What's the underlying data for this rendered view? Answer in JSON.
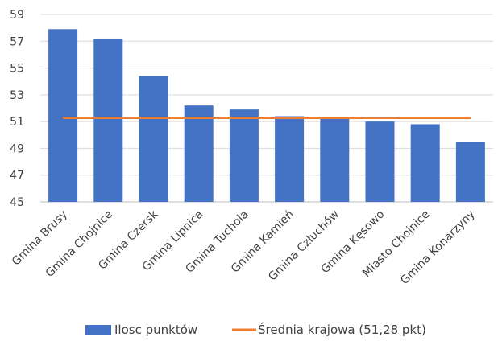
{
  "chart_data": {
    "type": "bar",
    "title": "",
    "xlabel": "",
    "ylabel": "",
    "ylim": [
      45,
      59
    ],
    "yticks": [
      45,
      47,
      49,
      51,
      53,
      55,
      57,
      59
    ],
    "grid": true,
    "legend_position": "bottom",
    "categories": [
      "Gmina Brusy",
      "Gmina Chojnice",
      "Gmina Czersk",
      "Gmina Lipnica",
      "Gmina Tuchola",
      "Gmina Kamień",
      "Gmina Człuchów",
      "Gmina Kęsowo",
      "Miasto Chojnice",
      "Gmina Konarzyny"
    ],
    "series": [
      {
        "name": "Ilosc punktów",
        "type": "bar",
        "color": "#4472C4",
        "values": [
          57.9,
          57.2,
          54.4,
          52.2,
          51.9,
          51.4,
          51.3,
          51.0,
          50.8,
          49.5
        ]
      },
      {
        "name": "Średnia krajowa (51,28 pkt)",
        "type": "line",
        "color": "#ED7D31",
        "values": [
          51.28,
          51.28,
          51.28,
          51.28,
          51.28,
          51.28,
          51.28,
          51.28,
          51.28,
          51.28
        ]
      }
    ]
  }
}
